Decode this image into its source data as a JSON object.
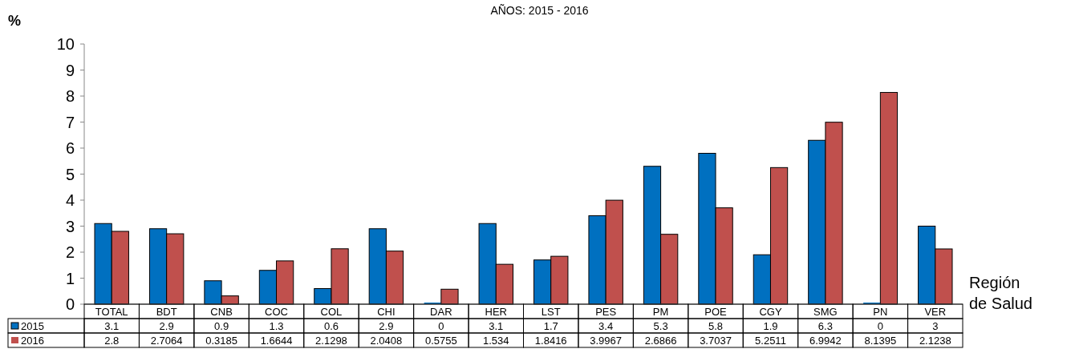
{
  "chart_data": {
    "type": "bar",
    "title": "AÑOS: 2015 - 2016",
    "ylabel": "%",
    "xlabel": "Región de Salud",
    "categories": [
      "TOTAL",
      "BDT",
      "CNB",
      "COC",
      "COL",
      "CHI",
      "DAR",
      "HER",
      "LST",
      "PES",
      "PM",
      "POE",
      "CGY",
      "SMG",
      "PN",
      "VER"
    ],
    "series": [
      {
        "name": "2015",
        "color": "#0070c0",
        "values": [
          3.1,
          2.9,
          0.9,
          1.3,
          0.6,
          2.9,
          0,
          3.1,
          1.7,
          3.4,
          5.3,
          5.8,
          1.9,
          6.3,
          0,
          3
        ]
      },
      {
        "name": "2016",
        "color": "#c0504d",
        "values": [
          2.8,
          2.7064,
          0.3185,
          1.6644,
          2.1298,
          2.0408,
          0.5755,
          1.534,
          1.8416,
          3.9967,
          2.6866,
          3.7037,
          5.2511,
          6.9942,
          8.1395,
          2.1238
        ]
      }
    ],
    "ylim": [
      0,
      10
    ],
    "yticks": [
      0,
      1,
      2,
      3,
      4,
      5,
      6,
      7,
      8,
      9,
      10
    ],
    "grid": false,
    "data_labels": true,
    "legend": "bottom left"
  }
}
